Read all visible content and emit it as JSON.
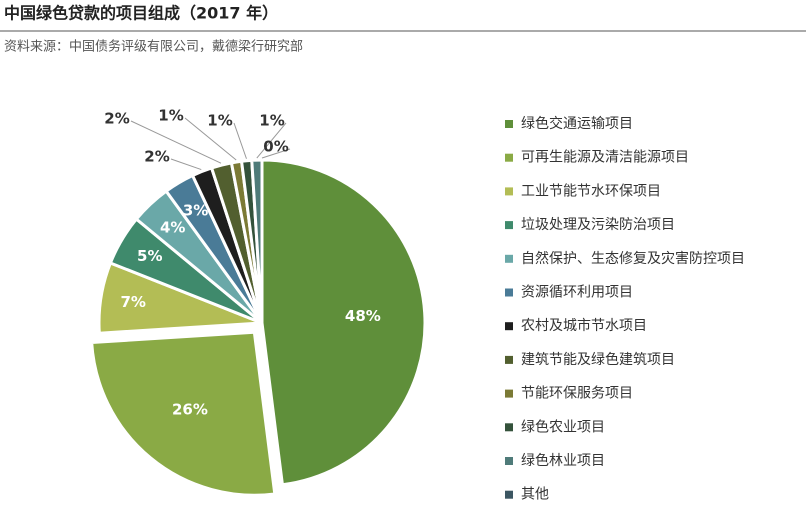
{
  "chart_data": {
    "type": "pie",
    "title": "中国绿色贷款的项目组成（2017 年）",
    "subtitle": "资料来源：中国债务评级有限公司，戴德梁行研究部",
    "categories": [
      "绿色交通运输项目",
      "可再生能源及清洁能源项目",
      "工业节能节水环保项目",
      "垃圾处理及污染防治项目",
      "自然保护、生态修复及灾害防控项目",
      "资源循环利用项目",
      "农村及城市节水项目",
      "建筑节能及绿色建筑项目",
      "节能环保服务项目",
      "绿色农业项目",
      "绿色林业项目",
      "其他"
    ],
    "values": [
      48,
      26,
      7,
      5,
      4,
      3,
      2,
      2,
      1,
      1,
      1,
      0
    ],
    "value_labels": [
      "48%",
      "26%",
      "7%",
      "5%",
      "4%",
      "3%",
      "2%",
      "2%",
      "1%",
      "1%",
      "1%",
      "0%"
    ],
    "colors": [
      "#5f8f3a",
      "#8aaa45",
      "#b3bd55",
      "#3f8a6c",
      "#6aa8a8",
      "#4a7b97",
      "#1e1e1e",
      "#525f2f",
      "#7b7a35",
      "#34523b",
      "#4f7b79",
      "#3c5662"
    ],
    "legend": "right"
  }
}
